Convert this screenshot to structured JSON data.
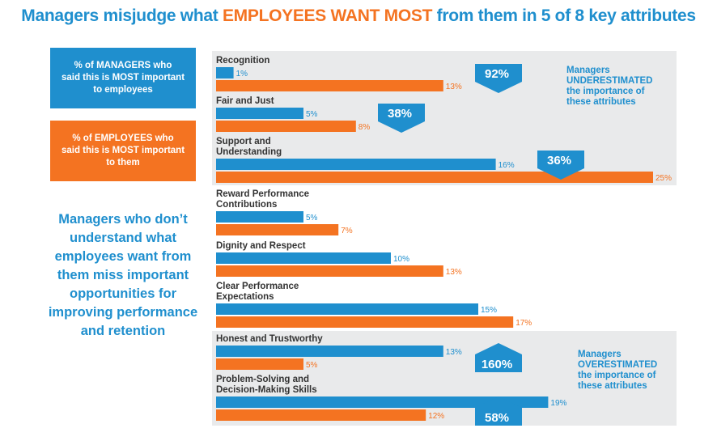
{
  "title": {
    "part1": "Managers misjudge what ",
    "highlight": "EMPLOYEES WANT MOST",
    "part2": " from them in 5 of 8 key attributes"
  },
  "legend": {
    "managers": "% of MANAGERS who\nsaid this is MOST important\nto employees",
    "employees": "% of EMPLOYEES who\nsaid this is MOST important\nto them"
  },
  "side_note": "Managers who don’t\nunderstand what\nemployees want from\nthem miss important\nopportunities for\nimproving performance\nand retention",
  "group_notes": {
    "under": [
      "Managers",
      "UNDERESTIMATED",
      "the importance of",
      "these attributes"
    ],
    "over": [
      "Managers",
      "OVERESTIMATED",
      "the importance of",
      "these attributes"
    ]
  },
  "colors": {
    "managers": "#1f8fce",
    "employees": "#f47321",
    "panel": "#e9eaeb",
    "gap_badge": "#1f8fce"
  },
  "chart_data": {
    "type": "bar",
    "orientation": "horizontal",
    "unit": "%",
    "categories": [
      [
        "Recognition"
      ],
      [
        "Fair and Just"
      ],
      [
        "Support and",
        "Understanding"
      ],
      [
        "Reward Performance",
        "Contributions"
      ],
      [
        "Dignity and Respect"
      ],
      [
        "Clear Performance",
        "Expectations"
      ],
      [
        "Honest and Trustworthy"
      ],
      [
        "Problem-Solving and",
        "Decision-Making Skills"
      ]
    ],
    "series": [
      {
        "key": "managers",
        "values": [
          1,
          5,
          16,
          5,
          10,
          15,
          13,
          19
        ]
      },
      {
        "key": "employees",
        "values": [
          13,
          8,
          25,
          7,
          13,
          17,
          5,
          12
        ]
      }
    ],
    "gaps": [
      {
        "category": 0,
        "label": "92",
        "direction": "down"
      },
      {
        "category": 1,
        "label": "38",
        "direction": "down"
      },
      {
        "category": 2,
        "label": "36",
        "direction": "down"
      },
      {
        "category": 6,
        "label": "160",
        "direction": "up"
      },
      {
        "category": 7,
        "label": "58",
        "direction": "up"
      }
    ],
    "highlight_groups": [
      {
        "categories": [
          0,
          1,
          2
        ],
        "note": "under"
      },
      {
        "categories": [
          6,
          7
        ],
        "note": "over"
      }
    ]
  }
}
